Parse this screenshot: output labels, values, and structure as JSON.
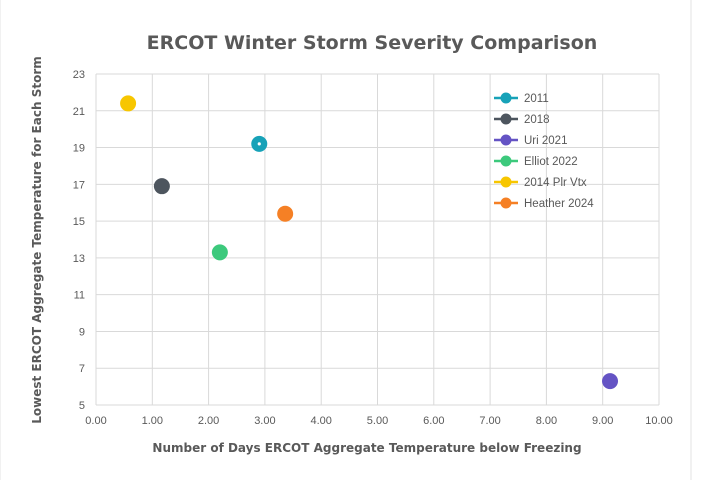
{
  "chart_data": {
    "type": "scatter",
    "title": "ERCOT Winter Storm Severity Comparison",
    "xlabel": "Number of Days ERCOT Aggregate Temperature below Freezing",
    "ylabel": "Lowest ERCOT Aggregate Temperature for Each Storm",
    "xlim": [
      0,
      10
    ],
    "ylim": [
      5,
      23
    ],
    "x_ticks": [
      "0.00",
      "1.00",
      "2.00",
      "3.00",
      "4.00",
      "5.00",
      "6.00",
      "7.00",
      "8.00",
      "9.00",
      "10.00"
    ],
    "y_ticks": [
      "5",
      "7",
      "9",
      "11",
      "13",
      "15",
      "17",
      "19",
      "21",
      "23"
    ],
    "grid": true,
    "legend_position": "top-right",
    "series": [
      {
        "name": "2011",
        "color": "#17a2b8",
        "points": [
          {
            "x": 2.9,
            "y": 19.2
          }
        ]
      },
      {
        "name": "2018",
        "color": "#4d555e",
        "points": [
          {
            "x": 1.17,
            "y": 16.9
          }
        ]
      },
      {
        "name": "Uri 2021",
        "color": "#6453c4",
        "points": [
          {
            "x": 9.13,
            "y": 6.3
          }
        ]
      },
      {
        "name": "Elliot 2022",
        "color": "#3cc97c",
        "points": [
          {
            "x": 2.2,
            "y": 13.3
          }
        ]
      },
      {
        "name": "2014 Plr Vtx",
        "color": "#f7c600",
        "points": [
          {
            "x": 0.57,
            "y": 21.4
          }
        ]
      },
      {
        "name": "Heather 2024",
        "color": "#f58025",
        "points": [
          {
            "x": 3.36,
            "y": 15.4
          }
        ]
      }
    ]
  }
}
